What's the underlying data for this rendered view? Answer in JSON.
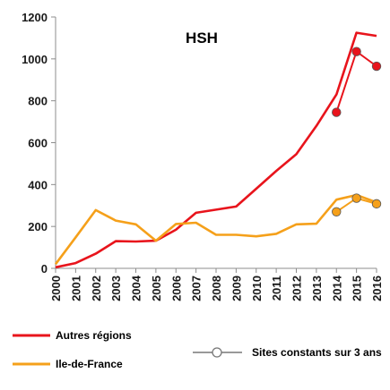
{
  "chart_data": {
    "type": "line",
    "title": "HSH",
    "xlabel": "",
    "ylabel": "",
    "x": [
      "2000",
      "2001",
      "2002",
      "2003",
      "2004",
      "2005",
      "2006",
      "2007",
      "2008",
      "2009",
      "2010",
      "2011",
      "2012",
      "2013",
      "2014",
      "2015",
      "2016"
    ],
    "ylim": [
      0,
      1200
    ],
    "yticks": [
      "0",
      "200",
      "400",
      "600",
      "800",
      "1000",
      "1200"
    ],
    "grid": false,
    "series": [
      {
        "name": "Autres régions",
        "color": "#e8141c",
        "values": [
          5,
          25,
          70,
          130,
          128,
          132,
          185,
          265,
          280,
          295,
          380,
          465,
          545,
          680,
          830,
          1125,
          1110
        ]
      },
      {
        "name": "Ile-de-France",
        "color": "#f5a01a",
        "values": [
          20,
          148,
          278,
          228,
          210,
          132,
          212,
          218,
          160,
          160,
          153,
          165,
          210,
          213,
          328,
          350,
          315
        ]
      }
    ],
    "constant_sites": {
      "name": "Sites constants sur 3 ans",
      "x": [
        "2014",
        "2015",
        "2016"
      ],
      "series": [
        {
          "name": "Autres régions",
          "color": "#e8141c",
          "values": [
            745,
            1035,
            965
          ]
        },
        {
          "name": "Ile-de-France",
          "color": "#f5a01a",
          "values": [
            270,
            335,
            308
          ]
        }
      ]
    },
    "legend": {
      "placement": "bottom",
      "items": [
        {
          "label": "Autres régions",
          "color": "#e8141c",
          "style": "line"
        },
        {
          "label": "Ile-de-France",
          "color": "#f5a01a",
          "style": "line"
        },
        {
          "label": "Sites constants sur 3 ans",
          "color": "#999999",
          "style": "line-marker"
        }
      ]
    }
  }
}
